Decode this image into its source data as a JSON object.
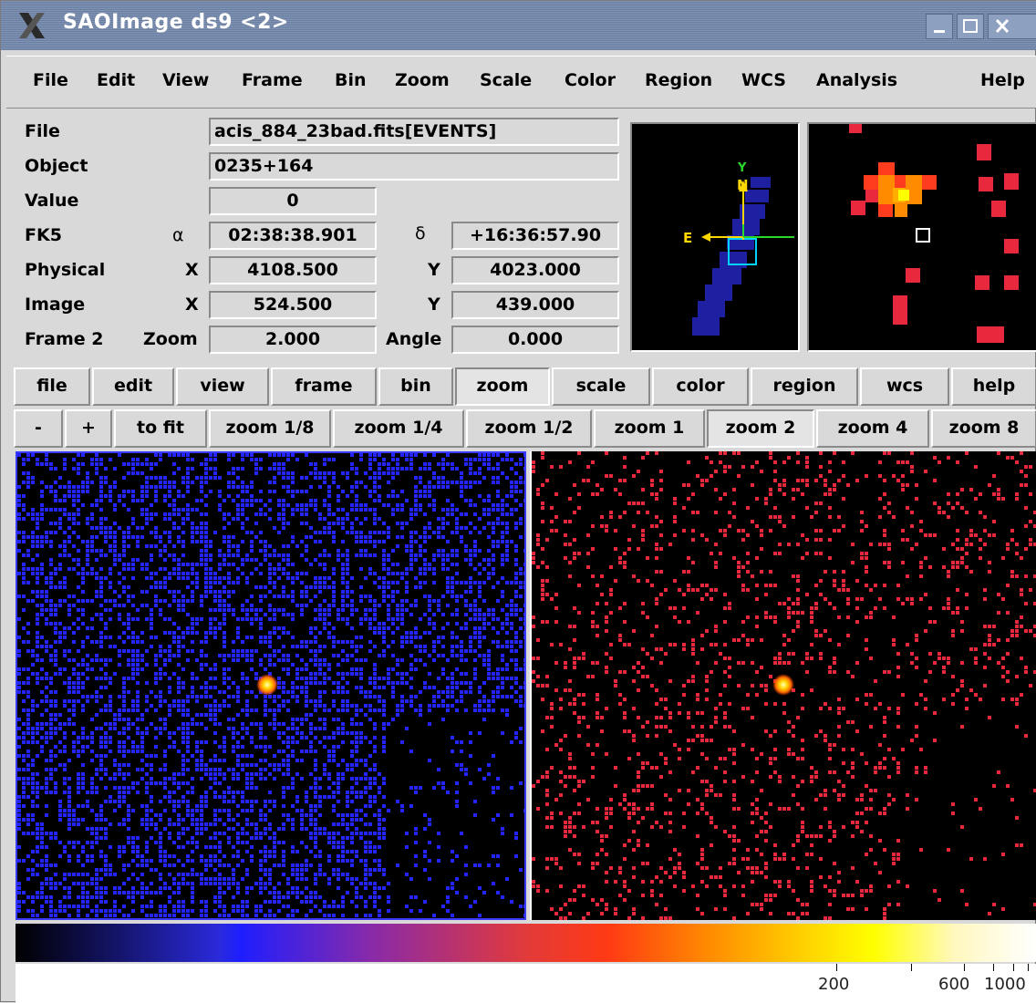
{
  "window": {
    "title": "SAOImage ds9 <2>"
  },
  "menubar": [
    "File",
    "Edit",
    "View",
    "Frame",
    "Bin",
    "Zoom",
    "Scale",
    "Color",
    "Region",
    "WCS",
    "Analysis",
    "Help"
  ],
  "info": {
    "file_label": "File",
    "file_value": "acis_884_23bad.fits[EVENTS]",
    "object_label": "Object",
    "object_value": "0235+164",
    "value_label": "Value",
    "value_value": "0",
    "fk5_label": "FK5",
    "alpha_symbol": "α",
    "alpha_value": "02:38:38.901",
    "delta_symbol": "δ",
    "delta_value": "+16:36:57.90",
    "physical_label": "Physical",
    "physical_x_label": "X",
    "physical_x": "4108.500",
    "physical_y_label": "Y",
    "physical_y": "4023.000",
    "image_label": "Image",
    "image_x_label": "X",
    "image_x": "524.500",
    "image_y_label": "Y",
    "image_y": "439.000",
    "frame_label": "Frame 2",
    "zoom_label": "Zoom",
    "zoom_value": "2.000",
    "angle_label": "Angle",
    "angle_value": "0.000"
  },
  "panner": {
    "n_label": "N",
    "y_label": "Y",
    "e_label": "E"
  },
  "buttonbar": [
    "file",
    "edit",
    "view",
    "frame",
    "bin",
    "zoom",
    "scale",
    "color",
    "region",
    "wcs",
    "help"
  ],
  "buttonbar_selected": "zoom",
  "zoombar": [
    "-",
    "+",
    "to fit",
    "zoom 1/8",
    "zoom 1/4",
    "zoom 1/2",
    "zoom 1",
    "zoom 2",
    "zoom 4",
    "zoom 8"
  ],
  "zoombar_selected": "zoom 2",
  "colorbar": {
    "tick_labels": [
      "200",
      "600",
      "1000"
    ]
  },
  "colors": {
    "titlebar": "#7a8eb0",
    "frame1_pixels": "#2424ff",
    "frame2_pixels": "#e8283c",
    "source": "#ffd700"
  }
}
